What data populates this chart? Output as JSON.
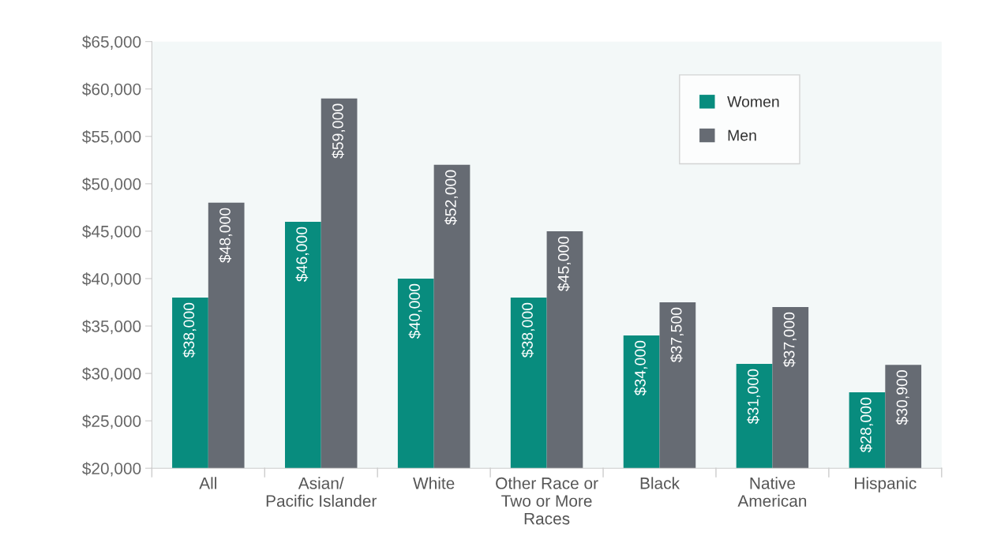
{
  "chart_data": {
    "type": "bar",
    "categories": [
      "All",
      "Asian/\nPacific Islander",
      "White",
      "Other Race or\nTwo or More\nRaces",
      "Black",
      "Native\nAmerican",
      "Hispanic"
    ],
    "series": [
      {
        "name": "Women",
        "color": "#088c7e",
        "values": [
          38000,
          46000,
          40000,
          38000,
          34000,
          31000,
          28000
        ],
        "value_labels": [
          "$38,000",
          "$46,000",
          "$40,000",
          "$38,000",
          "$34,000",
          "$31,000",
          "$28,000"
        ]
      },
      {
        "name": "Men",
        "color": "#666b73",
        "values": [
          48000,
          59000,
          52000,
          45000,
          37500,
          37000,
          30900
        ],
        "value_labels": [
          "$48,000",
          "$59,000",
          "$52,000",
          "$45,000",
          "$37,500",
          "$37,000",
          "$30,900"
        ]
      }
    ],
    "ylim": [
      20000,
      65000
    ],
    "yticks": [
      {
        "value": 20000,
        "label": "$20,000"
      },
      {
        "value": 25000,
        "label": "$25,000"
      },
      {
        "value": 30000,
        "label": "$30,000"
      },
      {
        "value": 35000,
        "label": "$35,000"
      },
      {
        "value": 40000,
        "label": "$40,000"
      },
      {
        "value": 45000,
        "label": "$45,000"
      },
      {
        "value": 50000,
        "label": "$50,000"
      },
      {
        "value": 55000,
        "label": "$55,000"
      },
      {
        "value": 60000,
        "label": "$60,000"
      },
      {
        "value": 65000,
        "label": "$65,000"
      }
    ],
    "grid": false,
    "legend": "top right"
  }
}
